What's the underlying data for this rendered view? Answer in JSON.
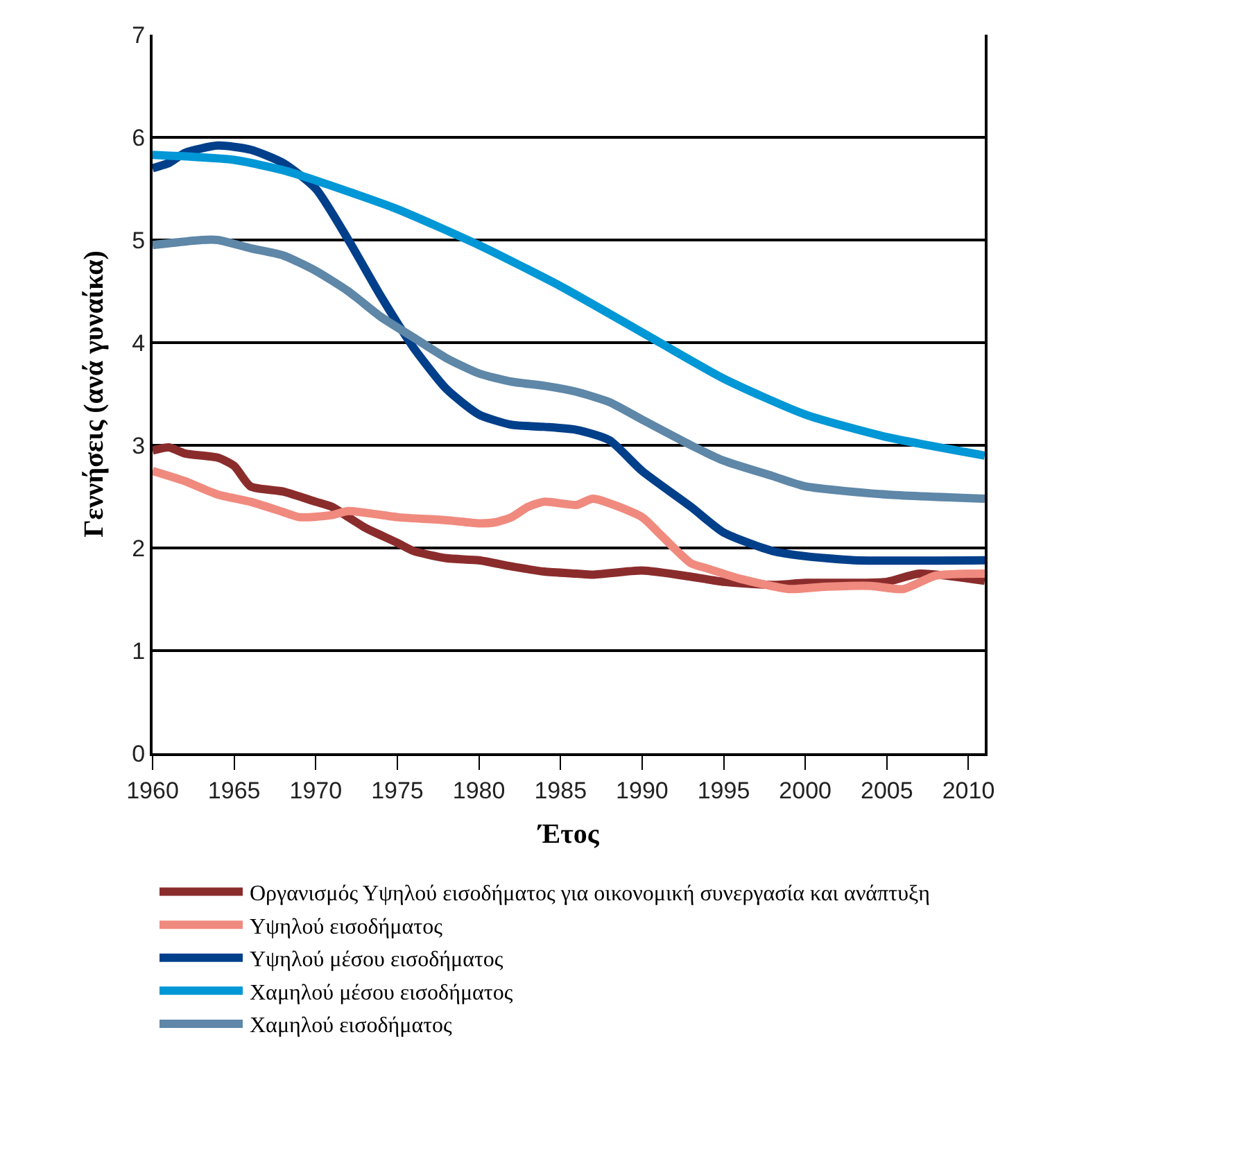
{
  "chart_data": {
    "type": "line",
    "xlabel": "Έτος",
    "ylabel": "Γεννήσεις (ανά γυναίκα)",
    "xlim": [
      1960,
      2011
    ],
    "xticks": [
      1960,
      1965,
      1970,
      1975,
      1980,
      1985,
      1990,
      1995,
      2000,
      2005,
      2010
    ],
    "ylim": [
      0,
      7
    ],
    "yticks": [
      0,
      1,
      2,
      3,
      4,
      5,
      6,
      7
    ],
    "grid": "y",
    "legend": "bottom",
    "marker": "none",
    "line_style": "solid",
    "series": [
      {
        "name": "Οργανισμός Υψηλού εισοδήματος για οικονομική συνεργασία και ανάπτυξη",
        "color": "#8b2c2c",
        "x": [
          1960,
          1961,
          1962,
          1964,
          1965,
          1966,
          1968,
          1970,
          1971,
          1972,
          1973,
          1975,
          1976,
          1978,
          1980,
          1982,
          1984,
          1986,
          1987,
          1990,
          1993,
          1995,
          1998,
          2000,
          2003,
          2005,
          2007,
          2011
        ],
        "values": [
          2.95,
          2.98,
          2.92,
          2.88,
          2.8,
          2.6,
          2.55,
          2.45,
          2.4,
          2.3,
          2.2,
          2.05,
          1.97,
          1.9,
          1.88,
          1.82,
          1.77,
          1.75,
          1.74,
          1.78,
          1.72,
          1.67,
          1.64,
          1.66,
          1.66,
          1.67,
          1.75,
          1.68
        ]
      },
      {
        "name": "Υψηλού εισοδήματος",
        "color": "#f08a7e",
        "x": [
          1960,
          1962,
          1964,
          1966,
          1968,
          1969,
          1971,
          1972,
          1975,
          1978,
          1980,
          1981,
          1982,
          1983,
          1984,
          1986,
          1987,
          1990,
          1991,
          1993,
          1994,
          1996,
          1999,
          2001,
          2004,
          2006,
          2008,
          2011
        ],
        "values": [
          2.75,
          2.65,
          2.52,
          2.45,
          2.35,
          2.3,
          2.32,
          2.36,
          2.3,
          2.27,
          2.24,
          2.25,
          2.3,
          2.4,
          2.45,
          2.42,
          2.48,
          2.3,
          2.15,
          1.85,
          1.8,
          1.7,
          1.6,
          1.62,
          1.63,
          1.6,
          1.73,
          1.75
        ]
      },
      {
        "name": "Υψηλού μέσου εισοδήματος",
        "color": "#003f8a",
        "x": [
          1960,
          1961,
          1962,
          1964,
          1966,
          1968,
          1970,
          1972,
          1974,
          1976,
          1978,
          1980,
          1982,
          1984,
          1986,
          1988,
          1990,
          1993,
          1995,
          1998,
          2000,
          2003,
          2011
        ],
        "values": [
          5.7,
          5.75,
          5.85,
          5.92,
          5.88,
          5.75,
          5.5,
          5.0,
          4.45,
          3.95,
          3.55,
          3.3,
          3.2,
          3.18,
          3.15,
          3.05,
          2.75,
          2.4,
          2.15,
          1.97,
          1.92,
          1.88,
          1.88
        ]
      },
      {
        "name": "Χαμηλού μέσου εισοδήματος",
        "color": "#0097d6",
        "x": [
          1960,
          1965,
          1968,
          1970,
          1975,
          1980,
          1985,
          1990,
          1995,
          2000,
          2005,
          2011
        ],
        "values": [
          5.83,
          5.78,
          5.68,
          5.58,
          5.3,
          4.95,
          4.55,
          4.1,
          3.65,
          3.3,
          3.08,
          2.9
        ]
      },
      {
        "name": "Χαμηλού εισοδήματος",
        "color": "#5e87a8",
        "x": [
          1960,
          1963,
          1964,
          1966,
          1968,
          1970,
          1972,
          1974,
          1976,
          1978,
          1980,
          1982,
          1984,
          1986,
          1988,
          1990,
          1993,
          1995,
          1998,
          2000,
          2005,
          2011
        ],
        "values": [
          4.95,
          5.0,
          5.0,
          4.92,
          4.85,
          4.7,
          4.5,
          4.25,
          4.05,
          3.85,
          3.7,
          3.62,
          3.58,
          3.52,
          3.42,
          3.25,
          3.0,
          2.85,
          2.7,
          2.6,
          2.52,
          2.48
        ]
      }
    ]
  }
}
